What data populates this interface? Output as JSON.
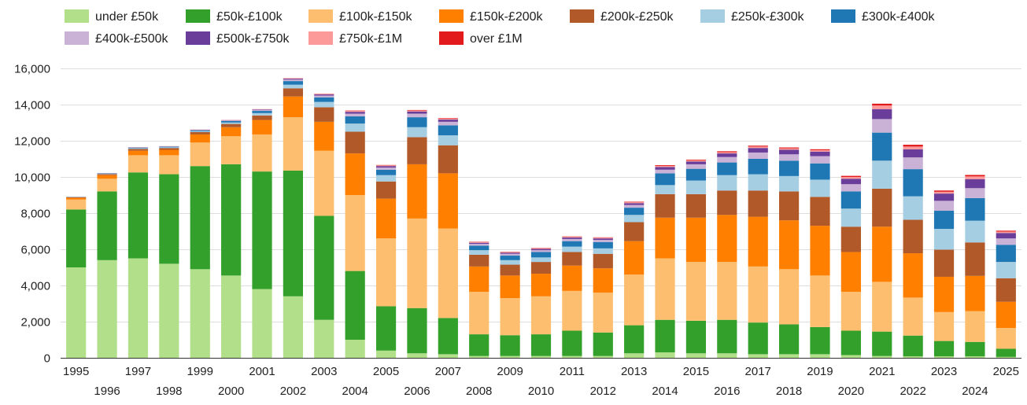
{
  "chart_data": {
    "type": "bar",
    "stacked": true,
    "title": "",
    "xlabel": "",
    "ylabel": "",
    "ylim": [
      0,
      16000
    ],
    "y_ticks": [
      0,
      2000,
      4000,
      6000,
      8000,
      10000,
      12000,
      14000,
      16000
    ],
    "grid": true,
    "legend_position": "top-left",
    "categories": [
      "1995",
      "1996",
      "1997",
      "1998",
      "1999",
      "2000",
      "2001",
      "2002",
      "2003",
      "2004",
      "2005",
      "2006",
      "2007",
      "2008",
      "2009",
      "2010",
      "2011",
      "2012",
      "2013",
      "2014",
      "2015",
      "2016",
      "2017",
      "2018",
      "2019",
      "2020",
      "2021",
      "2022",
      "2023",
      "2024",
      "2025"
    ],
    "series": [
      {
        "name": "under £50k",
        "color": "#b2df8a",
        "values": [
          5000,
          5400,
          5500,
          5200,
          4900,
          4550,
          3800,
          3400,
          2100,
          1000,
          400,
          250,
          200,
          100,
          100,
          100,
          100,
          100,
          250,
          300,
          250,
          250,
          200,
          200,
          200,
          150,
          100,
          80,
          80,
          80,
          50
        ]
      },
      {
        "name": "£50k-£100k",
        "color": "#33a02c",
        "values": [
          3200,
          3800,
          4750,
          4950,
          5700,
          6150,
          6500,
          6950,
          5750,
          3800,
          2450,
          2500,
          2000,
          1200,
          1150,
          1200,
          1400,
          1300,
          1550,
          1800,
          1800,
          1850,
          1750,
          1650,
          1500,
          1350,
          1350,
          1150,
          850,
          800,
          450
        ]
      },
      {
        "name": "£100k-£150k",
        "color": "#fdbf6f",
        "values": [
          550,
          700,
          950,
          1050,
          1300,
          1550,
          2050,
          2950,
          3600,
          4200,
          3750,
          4950,
          4950,
          2350,
          2050,
          2100,
          2200,
          2200,
          2800,
          3400,
          3250,
          3200,
          3100,
          3050,
          2850,
          2150,
          2750,
          2100,
          1600,
          1700,
          1150
        ]
      },
      {
        "name": "£150k-£200k",
        "color": "#ff7f00",
        "values": [
          100,
          200,
          250,
          300,
          450,
          500,
          800,
          1150,
          1600,
          2300,
          2200,
          3000,
          3050,
          1400,
          1250,
          1250,
          1400,
          1350,
          1850,
          2250,
          2450,
          2600,
          2750,
          2700,
          2750,
          2200,
          3050,
          2450,
          1950,
          1950,
          1450
        ]
      },
      {
        "name": "£200k-£250k",
        "color": "#b15928",
        "values": [
          30,
          60,
          100,
          100,
          130,
          180,
          250,
          450,
          800,
          1200,
          950,
          1500,
          1550,
          650,
          600,
          650,
          750,
          800,
          1050,
          1300,
          1300,
          1350,
          1450,
          1600,
          1600,
          1400,
          2100,
          1850,
          1500,
          1850,
          1300
        ]
      },
      {
        "name": "£250k-£300k",
        "color": "#a6cee3",
        "values": [
          10,
          20,
          40,
          40,
          50,
          80,
          130,
          200,
          300,
          450,
          350,
          550,
          550,
          250,
          250,
          250,
          300,
          300,
          400,
          500,
          750,
          850,
          900,
          850,
          950,
          1000,
          1550,
          1300,
          1150,
          1200,
          900
        ]
      },
      {
        "name": "£300k-£400k",
        "color": "#1f78b4",
        "values": [
          10,
          20,
          30,
          30,
          50,
          80,
          120,
          200,
          250,
          400,
          300,
          550,
          550,
          250,
          250,
          300,
          300,
          350,
          400,
          650,
          650,
          700,
          850,
          850,
          900,
          950,
          1550,
          1500,
          1000,
          1250,
          950
        ]
      },
      {
        "name": "£400k-£500k",
        "color": "#cab2d6",
        "values": [
          5,
          10,
          15,
          15,
          20,
          30,
          50,
          80,
          100,
          150,
          120,
          200,
          200,
          100,
          100,
          100,
          120,
          120,
          150,
          200,
          250,
          300,
          350,
          350,
          400,
          400,
          750,
          650,
          550,
          550,
          350
        ]
      },
      {
        "name": "£500k-£750k",
        "color": "#6a3d9a",
        "values": [
          3,
          5,
          10,
          10,
          15,
          20,
          30,
          50,
          60,
          100,
          80,
          120,
          120,
          60,
          60,
          70,
          80,
          80,
          100,
          150,
          150,
          200,
          250,
          250,
          250,
          300,
          550,
          450,
          400,
          500,
          300
        ]
      },
      {
        "name": "£750k-£1M",
        "color": "#fb9a99",
        "values": [
          1,
          2,
          4,
          4,
          5,
          8,
          10,
          20,
          30,
          50,
          40,
          50,
          50,
          30,
          30,
          30,
          40,
          40,
          50,
          60,
          60,
          70,
          80,
          80,
          80,
          100,
          200,
          150,
          100,
          150,
          80
        ]
      },
      {
        "name": "over £1M",
        "color": "#e31a1c",
        "values": [
          1,
          1,
          2,
          2,
          3,
          4,
          5,
          10,
          10,
          20,
          20,
          30,
          30,
          20,
          20,
          20,
          20,
          20,
          30,
          40,
          40,
          50,
          50,
          50,
          50,
          60,
          100,
          100,
          70,
          80,
          50
        ]
      }
    ]
  }
}
